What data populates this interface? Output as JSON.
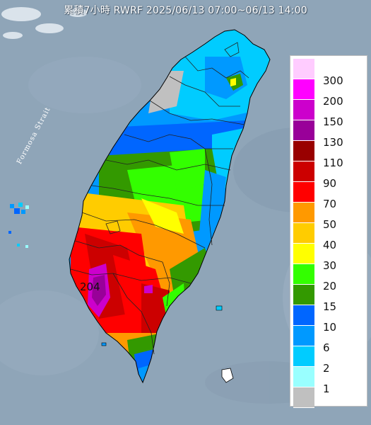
{
  "title": "累積7小時 RWRF 2025/06/13 07:00~06/13 14:00",
  "strait_label": "Formosa Strait",
  "max_label": "204",
  "legend": {
    "levels": [
      {
        "label": "300",
        "color": "#ffccff"
      },
      {
        "label": "200",
        "color": "#ff00ff"
      },
      {
        "label": "150",
        "color": "#cc00cc"
      },
      {
        "label": "130",
        "color": "#990099"
      },
      {
        "label": "110",
        "color": "#990000"
      },
      {
        "label": "90",
        "color": "#cc0000"
      },
      {
        "label": "70",
        "color": "#ff0000"
      },
      {
        "label": "50",
        "color": "#ff9900"
      },
      {
        "label": "40",
        "color": "#ffcc00"
      },
      {
        "label": "30",
        "color": "#ffff00"
      },
      {
        "label": "20",
        "color": "#33ff00"
      },
      {
        "label": "15",
        "color": "#339900"
      },
      {
        "label": "10",
        "color": "#0066ff"
      },
      {
        "label": "6",
        "color": "#0099ff"
      },
      {
        "label": "2",
        "color": "#00ccff"
      },
      {
        "label": "1",
        "color": "#99ffff"
      },
      {
        "label": "",
        "color": "#c0c0c0"
      }
    ]
  },
  "colors": {
    "sea": "#8fa5b8",
    "boundary": "#000000"
  }
}
